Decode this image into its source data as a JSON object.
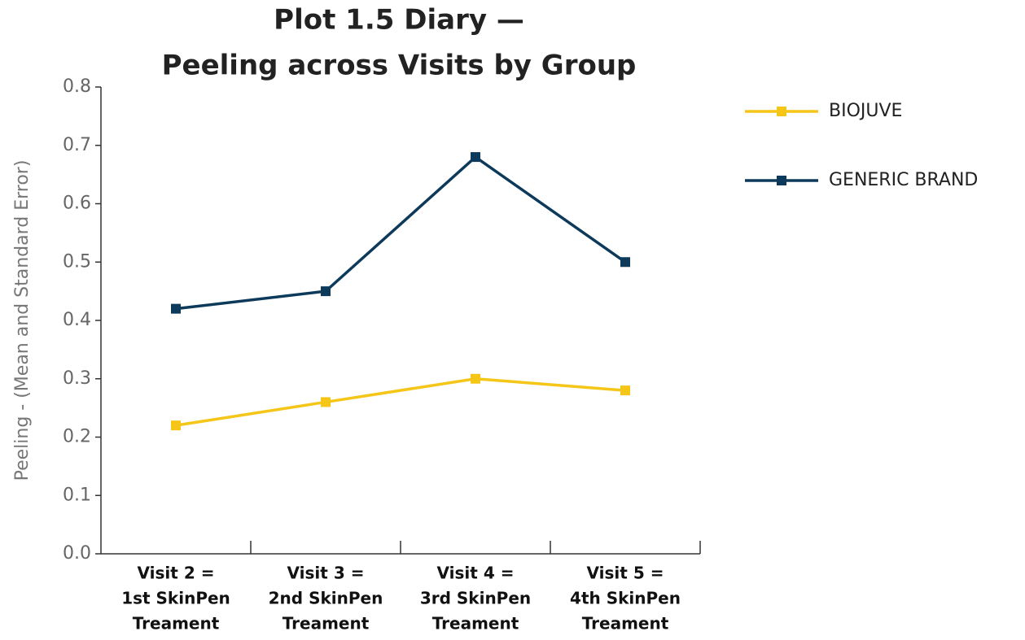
{
  "chart_data": {
    "type": "line",
    "title": [
      "Plot 1.5 Diary —",
      "Peeling across Visits by Group"
    ],
    "y_label": "Peeling - (Mean and Standard Error)",
    "categories": [
      [
        "Visit 2 =",
        "1st SkinPen",
        "Treament"
      ],
      [
        "Visit 3 =",
        "2nd SkinPen",
        "Treament"
      ],
      [
        "Visit 4 =",
        "3rd SkinPen",
        "Treament"
      ],
      [
        "Visit 5 =",
        "4th SkinPen",
        "Treament"
      ]
    ],
    "series": [
      {
        "name": "BIOJUVE",
        "color": "#f5c518",
        "values": [
          0.22,
          0.26,
          0.3,
          0.28
        ]
      },
      {
        "name": "GENERIC BRAND",
        "color": "#0d3a5a",
        "values": [
          0.42,
          0.45,
          0.68,
          0.5
        ]
      }
    ],
    "ylim": [
      0,
      0.8
    ],
    "yticks": [
      {
        "value": 0,
        "label": "0.0"
      },
      0.1,
      0.2,
      0.3,
      0.4,
      0.5,
      0.6,
      0.7,
      0.8
    ],
    "grid": false,
    "legend": "right"
  }
}
